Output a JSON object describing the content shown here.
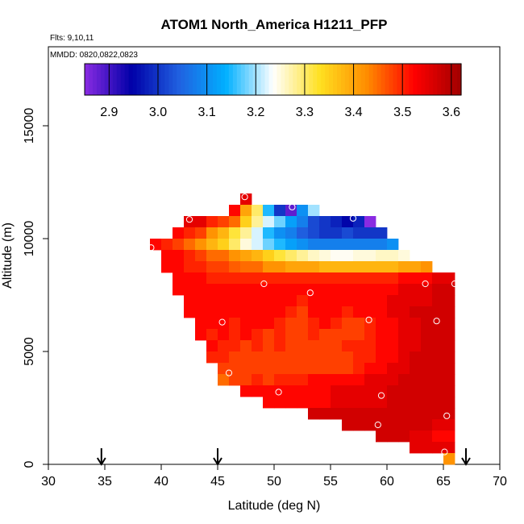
{
  "chart_data": {
    "type": "heatmap",
    "title": "ATOM1 North_America H1211_PFP",
    "annotations": [
      "Flts: 9,10,11",
      "MMDD: 0820,0822,0823"
    ],
    "xlabel": "Latitude (deg N)",
    "ylabel": "Altitude (m)",
    "xlim": [
      30,
      70
    ],
    "ylim": [
      0,
      18500
    ],
    "xticks": [
      30,
      35,
      40,
      45,
      50,
      55,
      60,
      65,
      70
    ],
    "yticks": [
      0,
      5000,
      10000,
      15000
    ],
    "colorbar": {
      "range": [
        2.85,
        3.62
      ],
      "ticks": [
        "2.9",
        "3.0",
        "3.1",
        "3.2",
        "3.3",
        "3.4",
        "3.5",
        "3.6"
      ],
      "colors": [
        "#8a2be2",
        "#0000a8",
        "#2060e0",
        "#00b0ff",
        "#ffffff",
        "#ffe020",
        "#ff8c00",
        "#ff0000",
        "#a00000"
      ]
    },
    "cell_size": {
      "lat": 1.0,
      "alt": 500
    },
    "grid_rows": [
      {
        "alt": 11750,
        "start": 47,
        "values": [
          3.55
        ]
      },
      {
        "alt": 11250,
        "start": 46,
        "values": [
          3.52,
          3.4,
          3.3,
          3.15,
          3.0,
          2.88,
          3.1,
          3.2
        ]
      },
      {
        "alt": 10750,
        "start": 42,
        "values": [
          3.55,
          3.55,
          3.5,
          3.48,
          3.45,
          3.35,
          3.28,
          3.22,
          3.18,
          3.12,
          3.08,
          3.02,
          3.0,
          2.98,
          2.95,
          2.98,
          2.85
        ]
      },
      {
        "alt": 10250,
        "start": 41,
        "values": [
          3.52,
          3.5,
          3.48,
          3.42,
          3.38,
          3.32,
          3.28,
          3.22,
          3.15,
          3.1,
          3.08,
          3.04,
          3.02,
          3.0,
          3.0,
          3.02,
          3.0,
          3.0,
          3.0
        ]
      },
      {
        "alt": 9750,
        "start": 39,
        "values": [
          3.52,
          3.5,
          3.48,
          3.45,
          3.42,
          3.38,
          3.35,
          3.3,
          3.25,
          3.22,
          3.18,
          3.15,
          3.12,
          3.1,
          3.08,
          3.08,
          3.08,
          3.08,
          3.08,
          3.08,
          3.08,
          3.1
        ]
      },
      {
        "alt": 9250,
        "start": 40,
        "values": [
          3.52,
          3.52,
          3.5,
          3.48,
          3.45,
          3.45,
          3.42,
          3.4,
          3.38,
          3.35,
          3.32,
          3.3,
          3.28,
          3.26,
          3.25,
          3.24,
          3.24,
          3.25,
          3.25,
          3.26,
          3.26,
          3.25
        ]
      },
      {
        "alt": 8750,
        "start": 40,
        "values": [
          3.52,
          3.52,
          3.5,
          3.5,
          3.48,
          3.48,
          3.46,
          3.45,
          3.45,
          3.42,
          3.42,
          3.4,
          3.4,
          3.4,
          3.38,
          3.38,
          3.38,
          3.38,
          3.38,
          3.38,
          3.38,
          3.4,
          3.4,
          3.42
        ]
      },
      {
        "alt": 8250,
        "start": 41,
        "values": [
          3.52,
          3.52,
          3.52,
          3.5,
          3.5,
          3.5,
          3.5,
          3.5,
          3.5,
          3.5,
          3.5,
          3.5,
          3.5,
          3.5,
          3.5,
          3.5,
          3.5,
          3.5,
          3.5,
          3.5,
          3.52,
          3.52,
          3.52,
          3.55,
          3.55
        ]
      },
      {
        "alt": 7750,
        "start": 41,
        "values": [
          3.52,
          3.52,
          3.52,
          3.52,
          3.52,
          3.52,
          3.52,
          3.52,
          3.52,
          3.52,
          3.52,
          3.52,
          3.52,
          3.52,
          3.52,
          3.52,
          3.52,
          3.52,
          3.52,
          3.52,
          3.55,
          3.55,
          3.55,
          3.57,
          3.57
        ]
      },
      {
        "alt": 7250,
        "start": 42,
        "values": [
          3.52,
          3.52,
          3.52,
          3.52,
          3.52,
          3.52,
          3.52,
          3.52,
          3.52,
          3.52,
          3.5,
          3.52,
          3.52,
          3.52,
          3.52,
          3.52,
          3.52,
          3.52,
          3.55,
          3.55,
          3.55,
          3.55,
          3.57,
          3.57
        ]
      },
      {
        "alt": 6750,
        "start": 42,
        "values": [
          3.52,
          3.52,
          3.52,
          3.52,
          3.52,
          3.52,
          3.52,
          3.52,
          3.52,
          3.5,
          3.48,
          3.52,
          3.52,
          3.52,
          3.5,
          3.52,
          3.52,
          3.52,
          3.55,
          3.55,
          3.57,
          3.57,
          3.57,
          3.57
        ]
      },
      {
        "alt": 6250,
        "start": 43,
        "values": [
          3.52,
          3.52,
          3.52,
          3.5,
          3.52,
          3.52,
          3.52,
          3.5,
          3.48,
          3.48,
          3.5,
          3.52,
          3.5,
          3.48,
          3.48,
          3.5,
          3.52,
          3.52,
          3.55,
          3.55,
          3.57,
          3.57,
          3.57
        ]
      },
      {
        "alt": 5750,
        "start": 43,
        "values": [
          3.52,
          3.5,
          3.52,
          3.5,
          3.52,
          3.5,
          3.48,
          3.5,
          3.48,
          3.48,
          3.5,
          3.48,
          3.48,
          3.48,
          3.48,
          3.5,
          3.52,
          3.52,
          3.55,
          3.55,
          3.57,
          3.57,
          3.57
        ]
      },
      {
        "alt": 5250,
        "start": 44,
        "values": [
          3.52,
          3.5,
          3.5,
          3.48,
          3.5,
          3.48,
          3.5,
          3.48,
          3.48,
          3.48,
          3.48,
          3.48,
          3.5,
          3.5,
          3.5,
          3.52,
          3.52,
          3.55,
          3.55,
          3.57,
          3.57,
          3.57
        ]
      },
      {
        "alt": 4750,
        "start": 44,
        "values": [
          3.5,
          3.5,
          3.48,
          3.48,
          3.48,
          3.48,
          3.48,
          3.48,
          3.48,
          3.48,
          3.48,
          3.48,
          3.48,
          3.5,
          3.5,
          3.52,
          3.52,
          3.55,
          3.57,
          3.57,
          3.57,
          3.57
        ]
      },
      {
        "alt": 4250,
        "start": 45,
        "values": [
          3.48,
          3.48,
          3.48,
          3.48,
          3.48,
          3.48,
          3.48,
          3.48,
          3.48,
          3.48,
          3.48,
          3.48,
          3.5,
          3.52,
          3.52,
          3.55,
          3.55,
          3.57,
          3.57,
          3.57,
          3.57
        ]
      },
      {
        "alt": 3750,
        "start": 45,
        "values": [
          3.45,
          3.48,
          3.48,
          3.5,
          3.48,
          3.5,
          3.5,
          3.5,
          3.52,
          3.52,
          3.52,
          3.52,
          3.52,
          3.55,
          3.55,
          3.55,
          3.57,
          3.57,
          3.57,
          3.57,
          3.57
        ]
      },
      {
        "alt": 3250,
        "start": 47,
        "values": [
          3.52,
          3.52,
          3.52,
          3.52,
          3.52,
          3.52,
          3.52,
          3.52,
          3.55,
          3.55,
          3.55,
          3.55,
          3.55,
          3.57,
          3.57,
          3.57,
          3.57,
          3.57,
          3.57
        ]
      },
      {
        "alt": 2750,
        "start": 49,
        "values": [
          3.52,
          3.52,
          3.52,
          3.52,
          3.52,
          3.52,
          3.55,
          3.55,
          3.55,
          3.55,
          3.55,
          3.57,
          3.57,
          3.57,
          3.57,
          3.57,
          3.57
        ]
      },
      {
        "alt": 2250,
        "start": 53,
        "values": [
          3.57,
          3.57,
          3.57,
          3.57,
          3.57,
          3.57,
          3.57,
          3.57,
          3.57,
          3.57,
          3.57,
          3.57,
          3.57
        ]
      },
      {
        "alt": 1750,
        "start": 56,
        "values": [
          3.57,
          3.57,
          3.57,
          3.57,
          3.57,
          3.57,
          3.57,
          3.57,
          3.55,
          3.55
        ]
      },
      {
        "alt": 1250,
        "start": 59,
        "values": [
          3.57,
          3.57,
          3.57,
          3.55,
          3.55,
          3.52,
          3.52
        ]
      },
      {
        "alt": 750,
        "start": 62,
        "values": [
          3.55,
          3.55,
          3.55,
          3.55
        ]
      },
      {
        "alt": 250,
        "start": 65,
        "values": [
          3.42
        ]
      }
    ],
    "sample_points": [
      {
        "lat": 47.4,
        "alt": 11850
      },
      {
        "lat": 51.6,
        "alt": 11400
      },
      {
        "lat": 42.5,
        "alt": 10850
      },
      {
        "lat": 57.0,
        "alt": 10900
      },
      {
        "lat": 39.1,
        "alt": 9600
      },
      {
        "lat": 49.1,
        "alt": 8000
      },
      {
        "lat": 63.4,
        "alt": 8000
      },
      {
        "lat": 66.0,
        "alt": 8000
      },
      {
        "lat": 53.2,
        "alt": 7600
      },
      {
        "lat": 45.4,
        "alt": 6300
      },
      {
        "lat": 58.4,
        "alt": 6400
      },
      {
        "lat": 64.4,
        "alt": 6350
      },
      {
        "lat": 46.0,
        "alt": 4050
      },
      {
        "lat": 50.4,
        "alt": 3200
      },
      {
        "lat": 59.5,
        "alt": 3050
      },
      {
        "lat": 59.2,
        "alt": 1750
      },
      {
        "lat": 65.3,
        "alt": 2150
      },
      {
        "lat": 65.1,
        "alt": 550
      }
    ],
    "flight_arrows_lat": [
      34.7,
      45.0,
      67.0
    ]
  }
}
